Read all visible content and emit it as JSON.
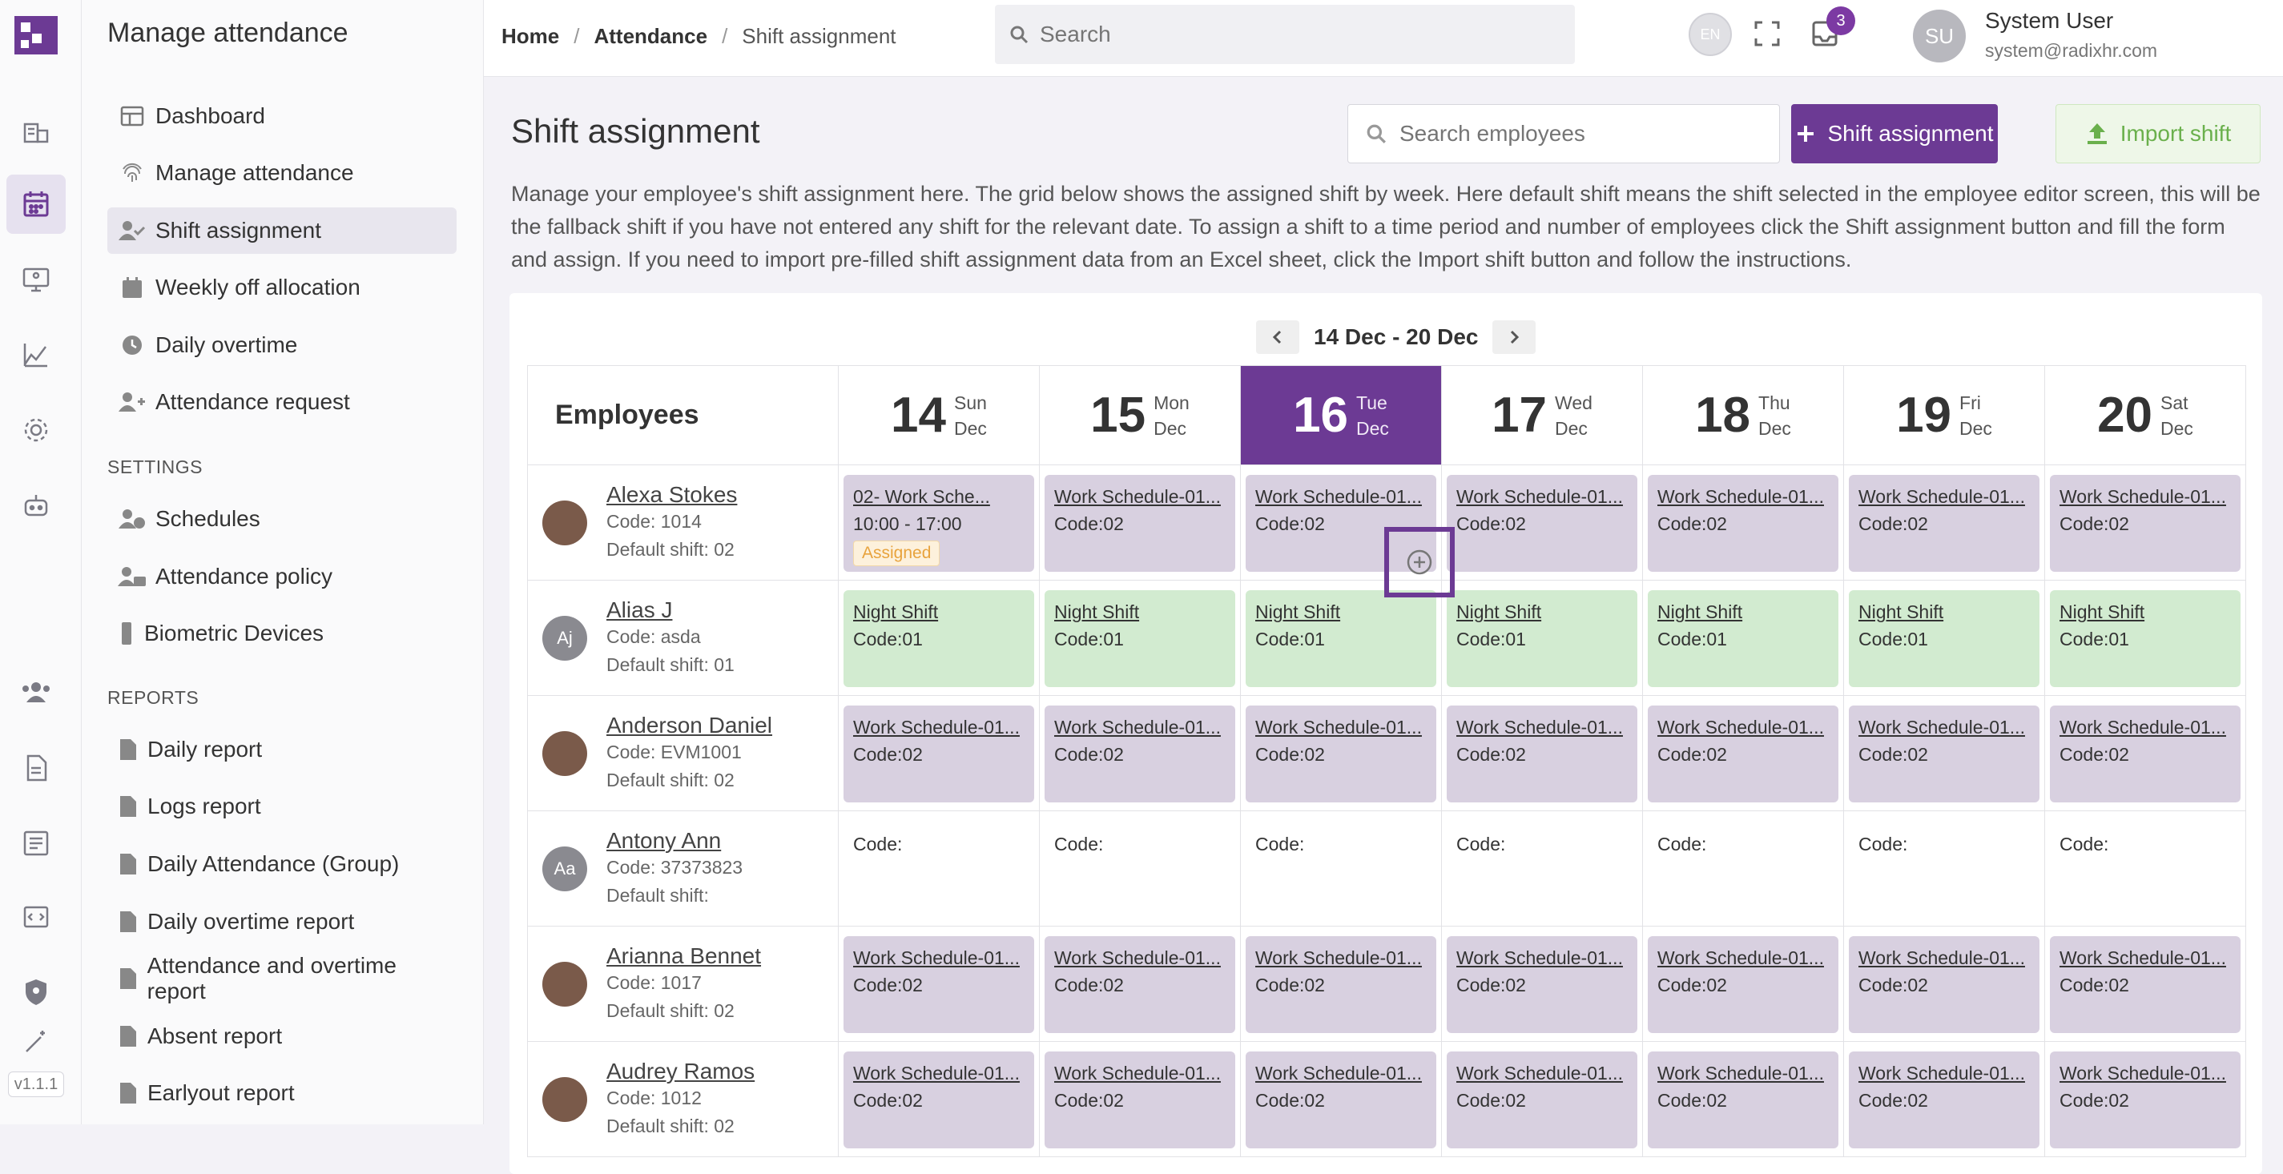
{
  "app": {
    "title": "Manage attendance",
    "version": "v1.1.1"
  },
  "rail_icons": [
    "building-icon",
    "calendar-icon",
    "monitor-icon",
    "chart-icon",
    "gear-icon",
    "robot-icon",
    "users-icon",
    "document-icon",
    "list-icon",
    "code-icon",
    "shield-icon",
    "magic-wand-icon"
  ],
  "sidebar": {
    "items": [
      {
        "label": "Dashboard",
        "icon": "table-icon"
      },
      {
        "label": "Manage attendance",
        "icon": "fingerprint-icon"
      },
      {
        "label": "Shift assignment",
        "icon": "user-check-icon",
        "active": true
      },
      {
        "label": "Weekly off allocation",
        "icon": "calendar-icon"
      },
      {
        "label": "Daily overtime",
        "icon": "clock-icon"
      },
      {
        "label": "Attendance request",
        "icon": "user-plus-icon"
      }
    ],
    "settings_title": "SETTINGS",
    "settings": [
      {
        "label": "Schedules",
        "icon": "user-clock-icon"
      },
      {
        "label": "Attendance policy",
        "icon": "user-gear-icon"
      },
      {
        "label": "Biometric Devices",
        "icon": "device-icon"
      }
    ],
    "reports_title": "REPORTS",
    "reports": [
      {
        "label": "Daily report"
      },
      {
        "label": "Logs report"
      },
      {
        "label": "Daily Attendance (Group)"
      },
      {
        "label": "Daily overtime report"
      },
      {
        "label": "Attendance and overtime report"
      },
      {
        "label": "Absent report"
      },
      {
        "label": "Earlyout report"
      }
    ]
  },
  "topbar": {
    "breadcrumb": [
      "Home",
      "Attendance",
      "Shift assignment"
    ],
    "search_placeholder": "Search",
    "lang": "EN",
    "notifications": "3",
    "user_initials": "SU",
    "user_name": "System User",
    "user_email": "system@radixhr.com"
  },
  "page": {
    "title": "Shift assignment",
    "employee_search_placeholder": "Search employees",
    "shift_button": "Shift assignment",
    "import_button": "Import shift",
    "description": "Manage your employee's shift assignment here. The grid below shows the assigned shift by week. Here default shift means the shift selected in the employee editor screen, this will be the fallback shift if you have not entered any shift for the relevant date. To assign a shift to a time period and number of employees click the Shift assignment button and fill the form and assign. If you need to import pre-filled shift assignment data from an Excel sheet, click the Import shift button and follow the instructions."
  },
  "grid": {
    "week_label": "14 Dec - 20 Dec",
    "employees_header": "Employees",
    "days": [
      {
        "num": "14",
        "dow": "Sun",
        "mon": "Dec"
      },
      {
        "num": "15",
        "dow": "Mon",
        "mon": "Dec"
      },
      {
        "num": "16",
        "dow": "Tue",
        "mon": "Dec",
        "today": true
      },
      {
        "num": "17",
        "dow": "Wed",
        "mon": "Dec"
      },
      {
        "num": "18",
        "dow": "Thu",
        "mon": "Dec"
      },
      {
        "num": "19",
        "dow": "Fri",
        "mon": "Dec"
      },
      {
        "num": "20",
        "dow": "Sat",
        "mon": "Dec"
      }
    ],
    "employees": [
      {
        "name": "Alexa Stokes",
        "code": "Code: 1014",
        "default": "Default shift: 02",
        "avatar": "",
        "photo": true,
        "cells": [
          {
            "type": "sched",
            "name": "02- Work Sche...",
            "time": "10:00 - 17:00",
            "badge": "Assigned"
          },
          {
            "type": "sched",
            "name": "Work Schedule-01...",
            "code": "Code:02"
          },
          {
            "type": "sched",
            "name": "Work Schedule-01...",
            "code": "Code:02"
          },
          {
            "type": "sched",
            "name": "Work Schedule-01...",
            "code": "Code:02"
          },
          {
            "type": "sched",
            "name": "Work Schedule-01...",
            "code": "Code:02"
          },
          {
            "type": "sched",
            "name": "Work Schedule-01...",
            "code": "Code:02"
          },
          {
            "type": "sched",
            "name": "Work Schedule-01...",
            "code": "Code:02"
          }
        ]
      },
      {
        "name": "Alias J",
        "code": "Code: asda",
        "default": "Default shift: 01",
        "avatar": "Aj",
        "cells": [
          {
            "type": "night",
            "name": "Night Shift",
            "code": "Code:01"
          },
          {
            "type": "night",
            "name": "Night Shift",
            "code": "Code:01"
          },
          {
            "type": "night",
            "name": "Night Shift",
            "code": "Code:01"
          },
          {
            "type": "night",
            "name": "Night Shift",
            "code": "Code:01"
          },
          {
            "type": "night",
            "name": "Night Shift",
            "code": "Code:01"
          },
          {
            "type": "night",
            "name": "Night Shift",
            "code": "Code:01"
          },
          {
            "type": "night",
            "name": "Night Shift",
            "code": "Code:01"
          }
        ]
      },
      {
        "name": "Anderson Daniel",
        "code": "Code: EVM1001",
        "default": "Default shift: 02",
        "avatar": "",
        "photo": true,
        "cells": [
          {
            "type": "sched",
            "name": "Work Schedule-01...",
            "code": "Code:02"
          },
          {
            "type": "sched",
            "name": "Work Schedule-01...",
            "code": "Code:02"
          },
          {
            "type": "sched",
            "name": "Work Schedule-01...",
            "code": "Code:02"
          },
          {
            "type": "sched",
            "name": "Work Schedule-01...",
            "code": "Code:02"
          },
          {
            "type": "sched",
            "name": "Work Schedule-01...",
            "code": "Code:02"
          },
          {
            "type": "sched",
            "name": "Work Schedule-01...",
            "code": "Code:02"
          },
          {
            "type": "sched",
            "name": "Work Schedule-01...",
            "code": "Code:02"
          }
        ]
      },
      {
        "name": "Antony Ann",
        "code": "Code: 37373823",
        "default": "Default shift:",
        "avatar": "Aa",
        "cells": [
          {
            "type": "empty",
            "code": "Code:"
          },
          {
            "type": "empty",
            "code": "Code:"
          },
          {
            "type": "empty",
            "code": "Code:"
          },
          {
            "type": "empty",
            "code": "Code:"
          },
          {
            "type": "empty",
            "code": "Code:"
          },
          {
            "type": "empty",
            "code": "Code:"
          },
          {
            "type": "empty",
            "code": "Code:"
          }
        ]
      },
      {
        "name": "Arianna Bennet",
        "code": "Code: 1017",
        "default": "Default shift: 02",
        "avatar": "",
        "photo": true,
        "cells": [
          {
            "type": "sched",
            "name": "Work Schedule-01...",
            "code": "Code:02"
          },
          {
            "type": "sched",
            "name": "Work Schedule-01...",
            "code": "Code:02"
          },
          {
            "type": "sched",
            "name": "Work Schedule-01...",
            "code": "Code:02"
          },
          {
            "type": "sched",
            "name": "Work Schedule-01...",
            "code": "Code:02"
          },
          {
            "type": "sched",
            "name": "Work Schedule-01...",
            "code": "Code:02"
          },
          {
            "type": "sched",
            "name": "Work Schedule-01...",
            "code": "Code:02"
          },
          {
            "type": "sched",
            "name": "Work Schedule-01...",
            "code": "Code:02"
          }
        ]
      },
      {
        "name": "Audrey Ramos",
        "code": "Code: 1012",
        "default": "Default shift: 02",
        "avatar": "",
        "photo": true,
        "cells": [
          {
            "type": "sched",
            "name": "Work Schedule-01...",
            "code": "Code:02"
          },
          {
            "type": "sched",
            "name": "Work Schedule-01...",
            "code": "Code:02"
          },
          {
            "type": "sched",
            "name": "Work Schedule-01...",
            "code": "Code:02"
          },
          {
            "type": "sched",
            "name": "Work Schedule-01...",
            "code": "Code:02"
          },
          {
            "type": "sched",
            "name": "Work Schedule-01...",
            "code": "Code:02"
          },
          {
            "type": "sched",
            "name": "Work Schedule-01...",
            "code": "Code:02"
          },
          {
            "type": "sched",
            "name": "Work Schedule-01...",
            "code": "Code:02"
          }
        ]
      }
    ]
  }
}
